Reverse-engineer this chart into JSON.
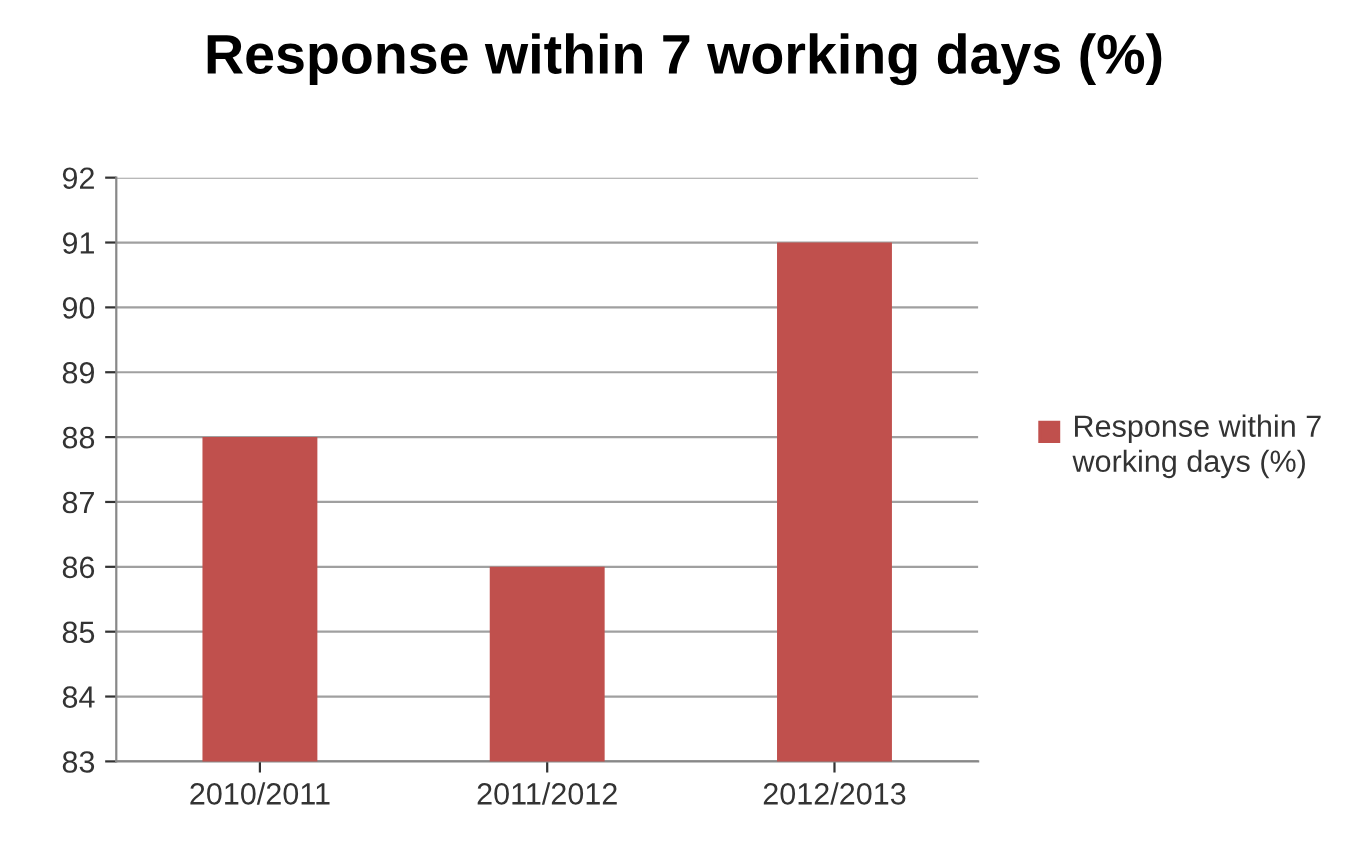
{
  "chart_data": {
    "type": "bar",
    "title": "Response within 7 working days (%)",
    "categories": [
      "2010/2011",
      "2011/2012",
      "2012/2013"
    ],
    "series": [
      {
        "name": "Response within 7 working days (%)",
        "color": "#c0504d",
        "values": [
          88,
          86,
          91
        ]
      }
    ],
    "ylim": [
      83,
      92
    ],
    "yticks": [
      83,
      84,
      85,
      86,
      87,
      88,
      89,
      90,
      91,
      92
    ],
    "grid": "y",
    "legend": "right"
  }
}
